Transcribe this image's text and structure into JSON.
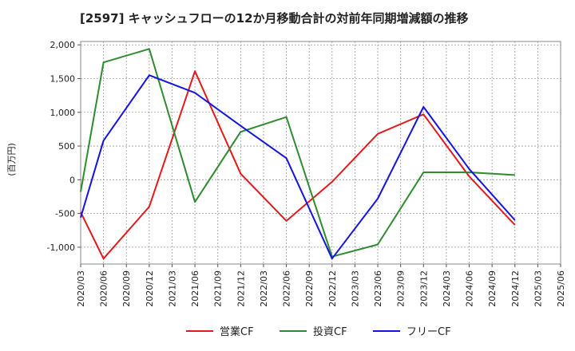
{
  "chart_data": {
    "type": "line",
    "title": "[2597]  キャッシュフローの12か月移動合計の対前年同期増減額の推移",
    "ylabel": "(百万円)",
    "xlabel": "",
    "categories": [
      "2020/03",
      "2020/06",
      "2020/09",
      "2020/12",
      "2021/03",
      "2021/06",
      "2021/09",
      "2021/12",
      "2022/03",
      "2022/06",
      "2022/09",
      "2022/12",
      "2023/03",
      "2023/06",
      "2023/09",
      "2023/12",
      "2024/03",
      "2024/06",
      "2024/09",
      "2024/12",
      "2025/03",
      "2025/06"
    ],
    "ylim": [
      -1250,
      2050
    ],
    "yticks": [
      2000,
      1500,
      1000,
      500,
      0,
      -500,
      -1000
    ],
    "ytick_labels": [
      "2,000",
      "1,500",
      "1,000",
      "500",
      "0",
      "-500",
      "-1,000"
    ],
    "grid": true,
    "legend_position": "bottom",
    "series": [
      {
        "name": "営業CF",
        "color": "#e31a1c",
        "values": [
          -480,
          -1170,
          null,
          -400,
          null,
          1610,
          null,
          90,
          null,
          -610,
          null,
          -30,
          null,
          680,
          null,
          970,
          null,
          50,
          null,
          -670,
          null,
          null
        ]
      },
      {
        "name": "投資CF",
        "color": "#2e8b2e",
        "values": [
          -180,
          1740,
          null,
          1940,
          null,
          -330,
          null,
          710,
          null,
          930,
          null,
          -1140,
          null,
          -960,
          null,
          110,
          null,
          110,
          null,
          70,
          null,
          null
        ]
      },
      {
        "name": "フリーCF",
        "color": "#1414e0",
        "values": [
          -560,
          580,
          null,
          1550,
          null,
          1290,
          null,
          800,
          null,
          320,
          null,
          -1170,
          null,
          -280,
          null,
          1080,
          null,
          160,
          null,
          -600,
          null,
          null
        ]
      }
    ]
  }
}
